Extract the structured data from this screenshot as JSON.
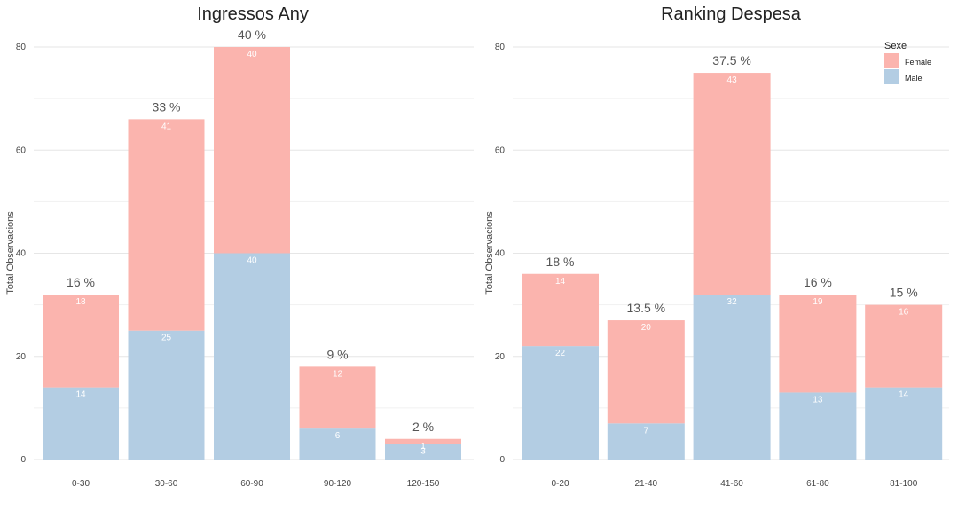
{
  "colors": {
    "female": "#fbb4ae",
    "male": "#b3cde3"
  },
  "legend": {
    "title": "Sexe",
    "items": [
      "Female",
      "Male"
    ]
  },
  "chart_data": [
    {
      "type": "bar",
      "stacked": true,
      "title": "Ingressos Any",
      "xlabel": "",
      "ylabel": "Total Observacions",
      "ylim": [
        0,
        80
      ],
      "yticks": [
        0,
        20,
        40,
        60,
        80
      ],
      "categories": [
        "0-30",
        "30-60",
        "60-90",
        "90-120",
        "120-150"
      ],
      "series": [
        {
          "name": "Male",
          "values": [
            14,
            25,
            40,
            6,
            3
          ]
        },
        {
          "name": "Female",
          "values": [
            18,
            41,
            40,
            12,
            1
          ]
        }
      ],
      "percent_labels": [
        "16 %",
        "33 %",
        "40 %",
        "9 %",
        "2 %"
      ],
      "grid": true
    },
    {
      "type": "bar",
      "stacked": true,
      "title": "Ranking Despesa",
      "xlabel": "",
      "ylabel": "Total Observacions",
      "ylim": [
        0,
        80
      ],
      "yticks": [
        0,
        20,
        40,
        60,
        80
      ],
      "categories": [
        "0-20",
        "21-40",
        "41-60",
        "61-80",
        "81-100"
      ],
      "series": [
        {
          "name": "Male",
          "values": [
            22,
            7,
            32,
            13,
            14
          ]
        },
        {
          "name": "Female",
          "values": [
            14,
            20,
            43,
            19,
            16
          ]
        }
      ],
      "percent_labels": [
        "18 %",
        "13.5 %",
        "37.5 %",
        "16 %",
        "15 %"
      ],
      "grid": true,
      "legend_position": "top-right"
    }
  ]
}
